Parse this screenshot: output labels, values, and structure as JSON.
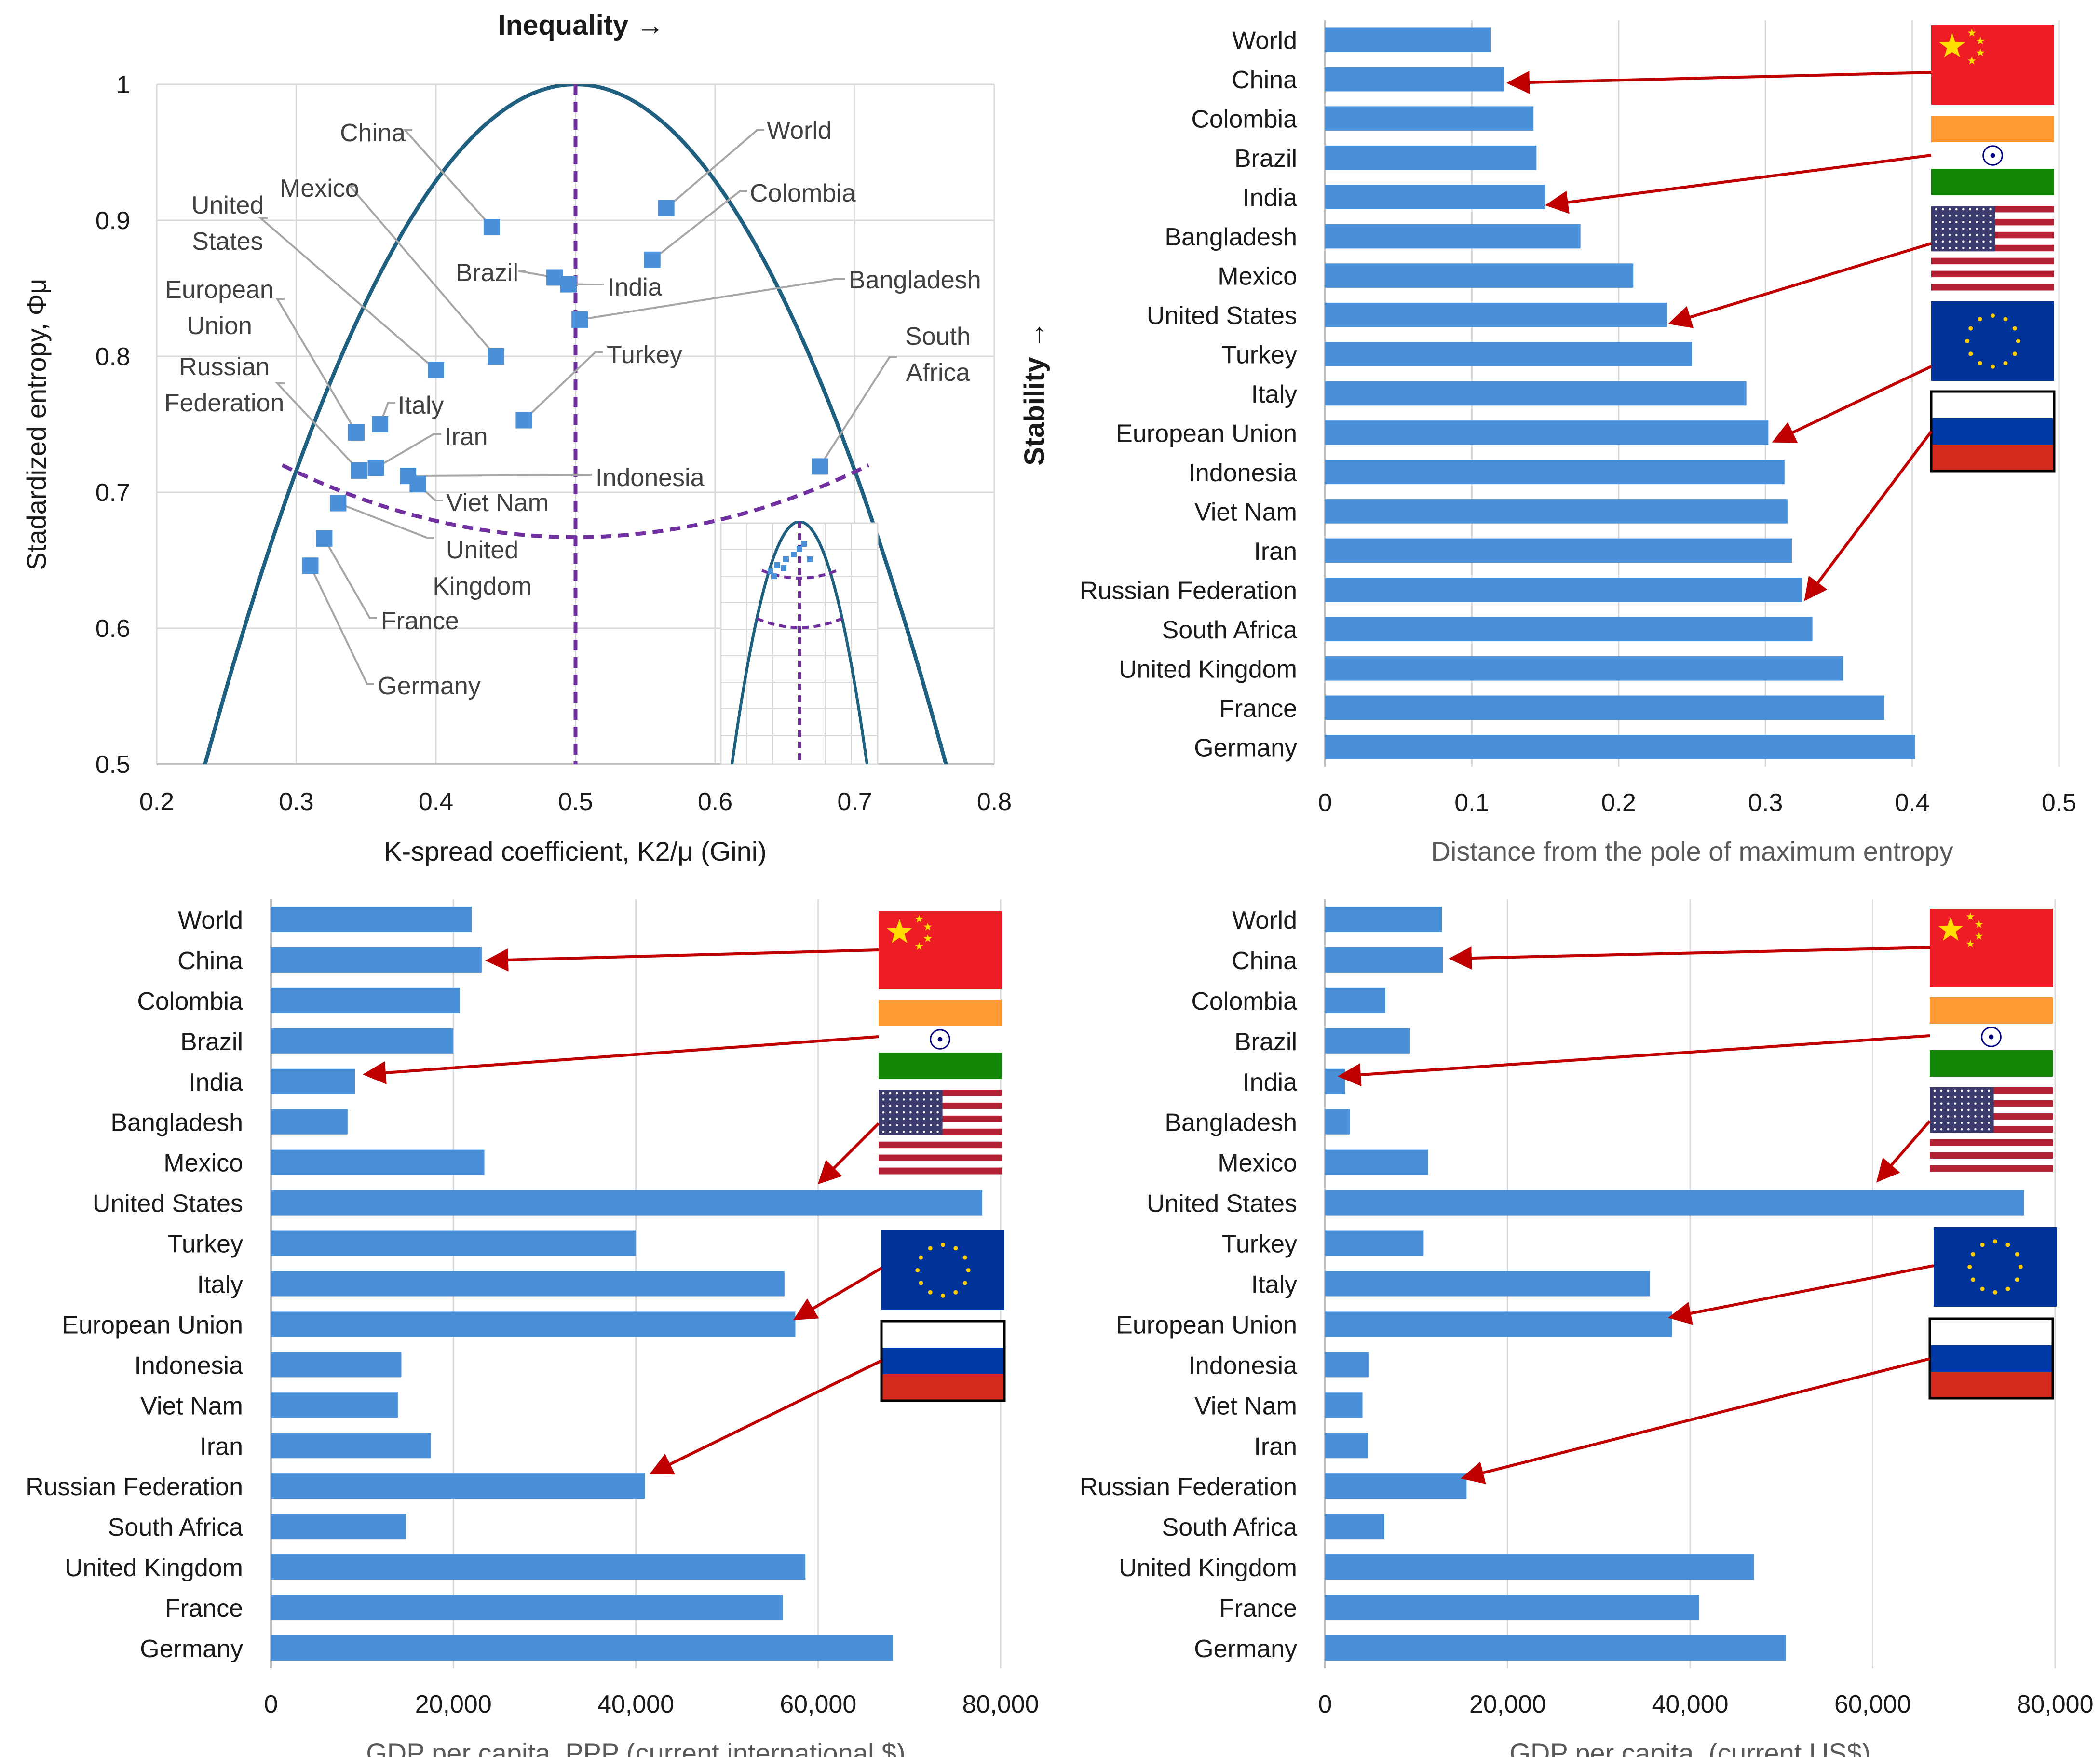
{
  "colors": {
    "bar": "#4a90d9",
    "marker": "#4a90d9",
    "curve": "#1f5f7f",
    "dashed": "#7030a0",
    "arrow": "#c00000",
    "grid": "#d9d9d9",
    "axis": "#bfbfbf",
    "leader": "#a6a6a6",
    "label": "#1a1a1a",
    "axis_title_gray": "#595959"
  },
  "flags": {
    "china": {
      "name": "China",
      "red": "#ee1c25",
      "yellow": "#ffde00"
    },
    "india": {
      "name": "India",
      "saffron": "#ff9933",
      "green": "#138808",
      "chakra": "#000080"
    },
    "usa": {
      "name": "United States",
      "red": "#b22234",
      "blue": "#3c3b6e"
    },
    "eu": {
      "name": "European Union",
      "blue": "#003399",
      "star": "#ffcc00"
    },
    "russia": {
      "name": "Russian Federation",
      "white": "#ffffff",
      "blue": "#0039a6",
      "red": "#d52b1e"
    }
  },
  "chart_data": [
    {
      "id": "scatter",
      "type": "scatter",
      "title": "Inequality →",
      "xlabel": "K-spread coefficient, K2/μ (Gini)",
      "ylabel": "Stadardized entropy, Φμ",
      "xlim": [
        0.2,
        0.8
      ],
      "ylim": [
        0.5,
        1.0
      ],
      "xticks": [
        "0.2",
        "0.3",
        "0.4",
        "0.5",
        "0.6",
        "0.7",
        "0.8"
      ],
      "yticks": [
        "0.5",
        "0.6",
        "0.7",
        "0.8",
        "0.9",
        "1"
      ],
      "points": [
        {
          "name": "World",
          "x": 0.565,
          "y": 0.909
        },
        {
          "name": "China",
          "x": 0.44,
          "y": 0.895
        },
        {
          "name": "Colombia",
          "x": 0.555,
          "y": 0.871
        },
        {
          "name": "Brazil",
          "x": 0.485,
          "y": 0.858
        },
        {
          "name": "India",
          "x": 0.495,
          "y": 0.853
        },
        {
          "name": "Bangladesh",
          "x": 0.503,
          "y": 0.827
        },
        {
          "name": "Mexico",
          "x": 0.443,
          "y": 0.8
        },
        {
          "name": "United States",
          "x": 0.4,
          "y": 0.79
        },
        {
          "name": "Turkey",
          "x": 0.463,
          "y": 0.753
        },
        {
          "name": "Italy",
          "x": 0.36,
          "y": 0.75
        },
        {
          "name": "European Union",
          "x": 0.343,
          "y": 0.744
        },
        {
          "name": "Russian Federation",
          "x": 0.345,
          "y": 0.716
        },
        {
          "name": "Iran",
          "x": 0.357,
          "y": 0.718
        },
        {
          "name": "Indonesia",
          "x": 0.38,
          "y": 0.712
        },
        {
          "name": "Viet Nam",
          "x": 0.387,
          "y": 0.706
        },
        {
          "name": "South Africa",
          "x": 0.675,
          "y": 0.719
        },
        {
          "name": "United Kingdom",
          "x": 0.33,
          "y": 0.692
        },
        {
          "name": "France",
          "x": 0.32,
          "y": 0.666
        },
        {
          "name": "Germany",
          "x": 0.31,
          "y": 0.646
        }
      ],
      "labels": {
        "World": [
          "World"
        ],
        "China": [
          "China"
        ],
        "Colombia": [
          "Colombia"
        ],
        "Brazil": [
          "Brazil"
        ],
        "India": [
          "India"
        ],
        "Bangladesh": [
          "Bangladesh"
        ],
        "Mexico": [
          "Mexico"
        ],
        "United States": [
          "United",
          "States"
        ],
        "Turkey": [
          "Turkey"
        ],
        "Italy": [
          "Italy"
        ],
        "European Union": [
          "European",
          "Union"
        ],
        "Russian Federation": [
          "Russian",
          "Federation"
        ],
        "Iran": [
          "Iran"
        ],
        "Indonesia": [
          "Indonesia"
        ],
        "Viet Nam": [
          "Viet Nam"
        ],
        "South Africa": [
          "South",
          "Africa"
        ],
        "United Kingdom": [
          "United",
          "Kingdom"
        ],
        "France": [
          "France"
        ],
        "Germany": [
          "Germany"
        ]
      },
      "curves": {
        "max_entropy_parabola": "y = 1 - 7.1*(x - 0.5)^2",
        "pole_line_x": 0.5,
        "min_curve": "y = 0.667 + 1.2*(x - 0.5)^2, x in [0.29, 0.71]"
      },
      "inset": {
        "description": "zoomed-out overview of same curves"
      }
    },
    {
      "id": "distance",
      "type": "bar",
      "orientation": "horizontal",
      "xlabel": "Distance from the pole of maximum entropy",
      "ylabel": "Stability →",
      "xlim": [
        0,
        0.5
      ],
      "xticks": [
        "0",
        "0.1",
        "0.2",
        "0.3",
        "0.4",
        "0.5"
      ],
      "categories": [
        "World",
        "China",
        "Colombia",
        "Brazil",
        "India",
        "Bangladesh",
        "Mexico",
        "United States",
        "Turkey",
        "Italy",
        "European Union",
        "Indonesia",
        "Viet Nam",
        "Iran",
        "Russian Federation",
        "South Africa",
        "United Kingdom",
        "France",
        "Germany"
      ],
      "values": [
        0.113,
        0.122,
        0.142,
        0.144,
        0.15,
        0.174,
        0.21,
        0.233,
        0.25,
        0.287,
        0.302,
        0.313,
        0.315,
        0.318,
        0.325,
        0.332,
        0.353,
        0.381,
        0.402
      ],
      "flag_arrows": [
        "China",
        "India",
        "United States",
        "European Union",
        "Russian Federation"
      ]
    },
    {
      "id": "gdp_ppp",
      "type": "bar",
      "orientation": "horizontal",
      "xlabel": "GDP per capita, PPP (current international $)",
      "xlim": [
        0,
        80000
      ],
      "xticks": [
        "0",
        "20,000",
        "40,000",
        "60,000",
        "80,000"
      ],
      "categories": [
        "World",
        "China",
        "Colombia",
        "Brazil",
        "India",
        "Bangladesh",
        "Mexico",
        "United States",
        "Turkey",
        "Italy",
        "European Union",
        "Indonesia",
        "Viet Nam",
        "Iran",
        "Russian Federation",
        "South Africa",
        "United Kingdom",
        "France",
        "Germany"
      ],
      "values": [
        22000,
        23100,
        20700,
        20000,
        9200,
        8400,
        23400,
        78000,
        40000,
        56300,
        57500,
        14300,
        13900,
        17500,
        41000,
        14800,
        58600,
        56100,
        68200
      ],
      "flag_arrows": [
        "China",
        "India",
        "United States",
        "European Union",
        "Russian Federation"
      ]
    },
    {
      "id": "gdp_usd",
      "type": "bar",
      "orientation": "horizontal",
      "xlabel": "GDP per capita, (current US$)",
      "xlim": [
        0,
        80000
      ],
      "xticks": [
        "0",
        "20,000",
        "40,000",
        "60,000",
        "80,000"
      ],
      "categories": [
        "World",
        "China",
        "Colombia",
        "Brazil",
        "India",
        "Bangladesh",
        "Mexico",
        "United States",
        "Turkey",
        "Italy",
        "European Union",
        "Indonesia",
        "Viet Nam",
        "Iran",
        "Russian Federation",
        "South Africa",
        "United Kingdom",
        "France",
        "Germany"
      ],
      "values": [
        12800,
        12900,
        6600,
        9300,
        2200,
        2700,
        11300,
        76600,
        10800,
        35600,
        38000,
        4800,
        4100,
        4700,
        15500,
        6500,
        47000,
        41000,
        50500
      ],
      "flag_arrows": [
        "China",
        "India",
        "United States",
        "European Union",
        "Russian Federation"
      ]
    }
  ]
}
